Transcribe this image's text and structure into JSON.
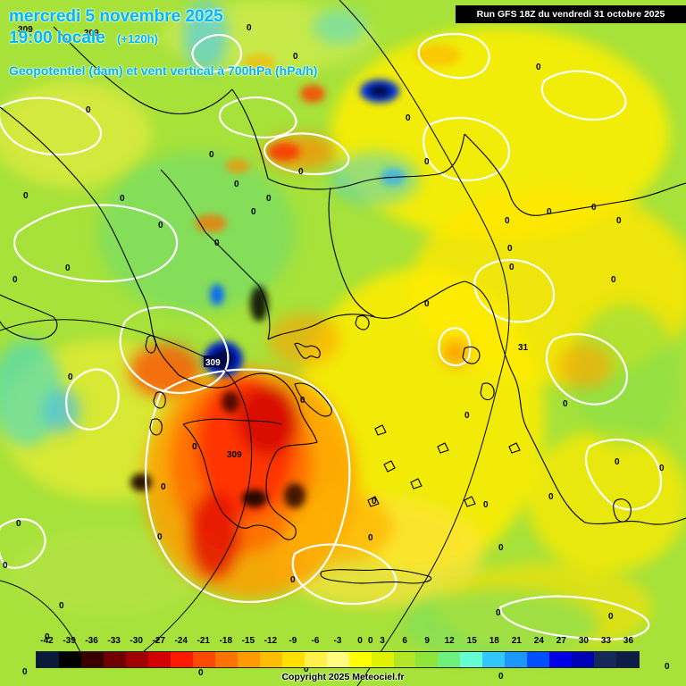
{
  "header": {
    "date_line": "mercredi 5 novembre 2025",
    "time_line": "19:00 locale",
    "lead_time": "(+120h)",
    "parameter_line": "Geopotentiel (dam) et vent vertical à 700hPa (hPa/h)",
    "run_info": "Run GFS 18Z du vendredi 31 octobre 2025"
  },
  "map": {
    "contour_labels": [
      "309",
      "309",
      "309",
      "309",
      "0",
      "31"
    ],
    "zero_marker": "0"
  },
  "legend": {
    "values": [
      "-42",
      "-39",
      "-36",
      "-33",
      "-30",
      "-27",
      "-24",
      "-21",
      "-18",
      "-15",
      "-12",
      "-9",
      "-6",
      "-3",
      "0",
      "3",
      "6",
      "9",
      "12",
      "15",
      "18",
      "21",
      "24",
      "27",
      "30",
      "33",
      "36"
    ],
    "colors": [
      "#0a1a3a",
      "#000000",
      "#3a0000",
      "#6e0000",
      "#a00000",
      "#d20000",
      "#ff1a00",
      "#ff4800",
      "#ff7300",
      "#ff9a00",
      "#ffbd00",
      "#ffde00",
      "#fff04a",
      "#fffc80",
      "#ffff00",
      "#ddf000",
      "#b4e628",
      "#8ee63c",
      "#6ef07a",
      "#64ffd2",
      "#32c8ff",
      "#1e96ff",
      "#0050ff",
      "#0000e6",
      "#0000b4",
      "#14285a",
      "#0c1e46"
    ]
  },
  "footer": {
    "copyright": "Copyright 2025 Meteociel.fr"
  }
}
